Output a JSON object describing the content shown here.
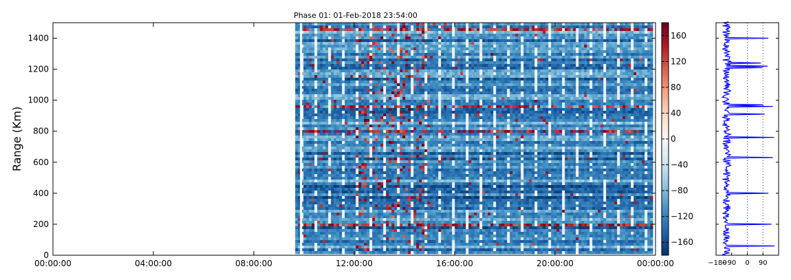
{
  "chart_data": [
    {
      "type": "heatmap",
      "title": "Phase 01: 01-Feb-2018 23:54:00",
      "xlabel": "",
      "ylabel": "Range (Km)",
      "x_ticks": [
        "00:00:00",
        "04:00:00",
        "08:00:00",
        "12:00:00",
        "16:00:00",
        "20:00:00",
        "00:00:00"
      ],
      "x_range_hours": [
        0,
        24
      ],
      "ylim": [
        0,
        1500
      ],
      "y_ticks": [
        0,
        200,
        400,
        600,
        800,
        1000,
        1200,
        1400
      ],
      "data_start_hour": 9.65,
      "data_end_hour": 24,
      "grid": false,
      "colormap": "RdBu_r",
      "colorbar": {
        "vmin": -180,
        "vmax": 180,
        "ticks": [
          -160,
          -120,
          -80,
          -40,
          0,
          40,
          80,
          120,
          160
        ]
      },
      "dominant_value_range": [
        -160,
        -80
      ],
      "description_hint": "phase values mostly between -160 and -80 with scattered positive outliers"
    },
    {
      "type": "line",
      "xlim": [
        -180,
        180
      ],
      "x_ticks": [
        "−180",
        "−90",
        "0",
        "90"
      ],
      "x_tick_values": [
        -180,
        -90,
        0,
        90
      ],
      "ylim": [
        0,
        1500
      ],
      "vertical_reference_lines": [
        0,
        90
      ],
      "series_color": "#0000ff"
    }
  ]
}
